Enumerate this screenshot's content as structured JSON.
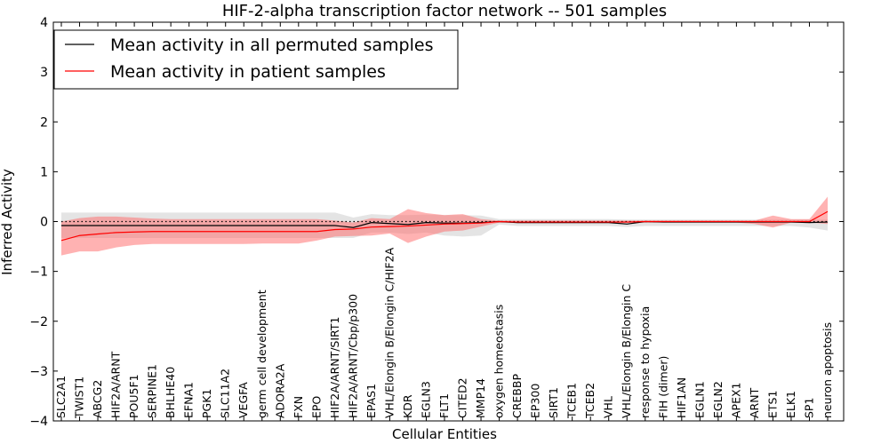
{
  "chart_data": {
    "type": "line",
    "title": "HIF-2-alpha transcription factor network -- 501 samples",
    "xlabel": "Cellular Entities",
    "ylabel": "Inferred Activity",
    "ylim": [
      -4,
      4
    ],
    "yticks": [
      -4,
      -3,
      -2,
      -1,
      0,
      1,
      2,
      3,
      4
    ],
    "ytick_labels": [
      "−4",
      "−3",
      "−2",
      "−1",
      "0",
      "1",
      "2",
      "3",
      "4"
    ],
    "legend_position": "top-left",
    "categories": [
      "SLC2A1",
      "TWIST1",
      "ABCG2",
      "HIF2A/ARNT",
      "POU5F1",
      "SERPINE1",
      "BHLHE40",
      "EFNA1",
      "PGK1",
      "SLC11A2",
      "VEGFA",
      "germ cell development",
      "ADORA2A",
      "FXN",
      "EPO",
      "HIF2A/ARNT/SIRT1",
      "HIF2A/ARNT/Cbp/p300",
      "EPAS1",
      "VHL/Elongin B/Elongin C/HIF2A",
      "KDR",
      "EGLN3",
      "FLT1",
      "CITED2",
      "MMP14",
      "oxygen homeostasis",
      "CREBBP",
      "EP300",
      "SIRT1",
      "TCEB1",
      "TCEB2",
      "VHL",
      "VHL/Elongin B/Elongin C",
      "response to hypoxia",
      "FIH (dimer)",
      "HIF1AN",
      "EGLN1",
      "EGLN2",
      "APEX1",
      "ARNT",
      "ETS1",
      "ELK1",
      "SP1",
      "neuron apoptosis"
    ],
    "series": [
      {
        "name": "Mean activity in all permuted samples",
        "color": "#000000",
        "band_color": "#b3b3b3",
        "values": [
          -0.08,
          -0.08,
          -0.08,
          -0.08,
          -0.08,
          -0.08,
          -0.08,
          -0.08,
          -0.08,
          -0.08,
          -0.08,
          -0.08,
          -0.08,
          -0.08,
          -0.08,
          -0.08,
          -0.12,
          -0.02,
          -0.04,
          -0.06,
          -0.02,
          -0.03,
          -0.03,
          -0.02,
          0.0,
          -0.02,
          -0.02,
          -0.02,
          -0.02,
          -0.02,
          -0.02,
          -0.05,
          0.0,
          -0.01,
          -0.01,
          -0.01,
          -0.01,
          -0.01,
          -0.01,
          -0.01,
          -0.01,
          -0.02,
          -0.01
        ],
        "band_upper": [
          0.18,
          0.18,
          0.18,
          0.18,
          0.18,
          0.18,
          0.18,
          0.18,
          0.18,
          0.18,
          0.18,
          0.18,
          0.18,
          0.18,
          0.18,
          0.18,
          0.08,
          0.15,
          0.13,
          0.13,
          0.14,
          0.13,
          0.13,
          0.12,
          0.05,
          0.05,
          0.05,
          0.05,
          0.05,
          0.05,
          0.05,
          0.04,
          0.04,
          0.04,
          0.04,
          0.04,
          0.04,
          0.04,
          0.04,
          0.04,
          0.04,
          0.04,
          0.04
        ],
        "band_lower": [
          -0.33,
          -0.33,
          -0.33,
          -0.33,
          -0.33,
          -0.33,
          -0.33,
          -0.33,
          -0.33,
          -0.33,
          -0.33,
          -0.33,
          -0.33,
          -0.33,
          -0.33,
          -0.33,
          -0.33,
          -0.22,
          -0.22,
          -0.25,
          -0.22,
          -0.28,
          -0.3,
          -0.28,
          -0.06,
          -0.09,
          -0.09,
          -0.09,
          -0.09,
          -0.09,
          -0.09,
          -0.11,
          -0.09,
          -0.09,
          -0.09,
          -0.09,
          -0.09,
          -0.09,
          -0.09,
          -0.09,
          -0.09,
          -0.12,
          -0.18
        ]
      },
      {
        "name": "Mean activity in patient samples",
        "color": "#ff0000",
        "band_color": "#ff6666",
        "values": [
          -0.38,
          -0.28,
          -0.25,
          -0.22,
          -0.21,
          -0.2,
          -0.2,
          -0.2,
          -0.2,
          -0.2,
          -0.2,
          -0.2,
          -0.2,
          -0.2,
          -0.2,
          -0.16,
          -0.15,
          -0.11,
          -0.1,
          -0.09,
          -0.07,
          -0.05,
          -0.04,
          -0.03,
          0.0,
          -0.01,
          -0.01,
          -0.01,
          -0.01,
          -0.01,
          -0.01,
          -0.01,
          0.0,
          0.0,
          0.0,
          0.0,
          0.0,
          0.0,
          0.0,
          0.0,
          0.0,
          0.0,
          0.2
        ],
        "band_upper": [
          0.0,
          0.07,
          0.1,
          0.1,
          0.08,
          0.06,
          0.05,
          0.05,
          0.05,
          0.05,
          0.05,
          0.05,
          0.05,
          0.05,
          0.05,
          0.02,
          -0.02,
          0.07,
          0.05,
          0.25,
          0.17,
          0.13,
          0.15,
          0.05,
          0.02,
          0.02,
          0.02,
          0.02,
          0.02,
          0.02,
          0.02,
          0.02,
          0.02,
          0.02,
          0.02,
          0.02,
          0.02,
          0.02,
          0.02,
          0.12,
          0.05,
          0.05,
          0.5
        ],
        "band_lower": [
          -0.68,
          -0.6,
          -0.6,
          -0.52,
          -0.47,
          -0.45,
          -0.45,
          -0.45,
          -0.45,
          -0.45,
          -0.45,
          -0.44,
          -0.44,
          -0.44,
          -0.38,
          -0.3,
          -0.29,
          -0.28,
          -0.24,
          -0.43,
          -0.3,
          -0.2,
          -0.18,
          -0.1,
          -0.02,
          -0.03,
          -0.03,
          -0.03,
          -0.03,
          -0.03,
          -0.03,
          -0.03,
          -0.02,
          -0.02,
          -0.02,
          -0.02,
          -0.02,
          -0.02,
          -0.05,
          -0.12,
          -0.02,
          -0.02,
          -0.05
        ]
      }
    ],
    "reference_line": {
      "style": "dotted",
      "value": 0
    }
  }
}
